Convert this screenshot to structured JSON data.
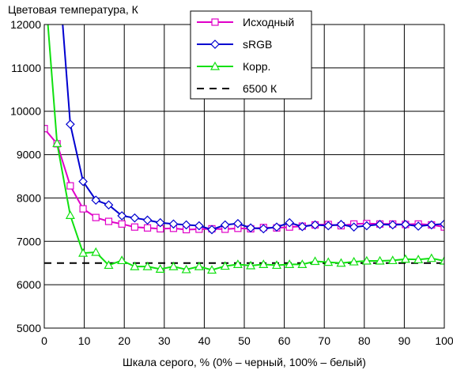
{
  "chart_data": {
    "type": "line",
    "ylabel": "Цветовая температура, К",
    "xlabel": "Шкала серого, % (0% – черный, 100% – белый)",
    "xlim": [
      0,
      100
    ],
    "ylim": [
      5000,
      12000
    ],
    "x_ticks": [
      "0",
      "10",
      "20",
      "30",
      "40",
      "50",
      "60",
      "70",
      "80",
      "90",
      "100"
    ],
    "y_ticks": [
      "5000",
      "6000",
      "7000",
      "8000",
      "9000",
      "10000",
      "11000",
      "12000"
    ],
    "grid": "horizontal and vertical",
    "legend_position": "top-center",
    "series": [
      {
        "name": "Исходный",
        "color": "#e000c8",
        "marker": "square",
        "points": [
          [
            0,
            9600
          ],
          [
            3.2,
            9250
          ],
          [
            6.5,
            8280
          ],
          [
            9.7,
            7750
          ],
          [
            12.9,
            7550
          ],
          [
            16.1,
            7460
          ],
          [
            19.4,
            7400
          ],
          [
            22.6,
            7330
          ],
          [
            25.8,
            7310
          ],
          [
            29,
            7290
          ],
          [
            32.3,
            7300
          ],
          [
            35.5,
            7270
          ],
          [
            38.7,
            7280
          ],
          [
            41.9,
            7290
          ],
          [
            45.2,
            7280
          ],
          [
            48.4,
            7300
          ],
          [
            51.6,
            7290
          ],
          [
            54.8,
            7320
          ],
          [
            58.1,
            7310
          ],
          [
            61.3,
            7330
          ],
          [
            64.5,
            7350
          ],
          [
            67.7,
            7380
          ],
          [
            71,
            7390
          ],
          [
            74.2,
            7360
          ],
          [
            77.4,
            7400
          ],
          [
            80.6,
            7410
          ],
          [
            83.9,
            7400
          ],
          [
            87.1,
            7400
          ],
          [
            90.3,
            7390
          ],
          [
            93.5,
            7400
          ],
          [
            96.8,
            7380
          ],
          [
            100,
            7330
          ]
        ]
      },
      {
        "name": "sRGB",
        "color": "#0000d0",
        "marker": "diamond",
        "points": [
          [
            6.5,
            9700
          ],
          [
            9.7,
            8380
          ],
          [
            12.9,
            7950
          ],
          [
            16.1,
            7840
          ],
          [
            19.4,
            7590
          ],
          [
            22.6,
            7540
          ],
          [
            25.8,
            7490
          ],
          [
            29,
            7430
          ],
          [
            32.3,
            7400
          ],
          [
            35.5,
            7380
          ],
          [
            38.7,
            7360
          ],
          [
            41.9,
            7270
          ],
          [
            45.2,
            7380
          ],
          [
            48.4,
            7410
          ],
          [
            51.6,
            7310
          ],
          [
            54.8,
            7290
          ],
          [
            58.1,
            7330
          ],
          [
            61.3,
            7430
          ],
          [
            64.5,
            7340
          ],
          [
            67.7,
            7380
          ],
          [
            71,
            7360
          ],
          [
            74.2,
            7390
          ],
          [
            77.4,
            7330
          ],
          [
            80.6,
            7360
          ],
          [
            83.9,
            7390
          ],
          [
            87.1,
            7380
          ],
          [
            90.3,
            7390
          ],
          [
            93.5,
            7350
          ],
          [
            96.8,
            7380
          ],
          [
            100,
            7400
          ]
        ],
        "line_from": [
          [
            4.6,
            12000
          ]
        ]
      },
      {
        "name": "Корр.",
        "color": "#10e010",
        "marker": "triangle",
        "points": [
          [
            3.2,
            9260
          ],
          [
            6.5,
            7600
          ],
          [
            9.7,
            6730
          ],
          [
            12.9,
            6750
          ],
          [
            16.1,
            6450
          ],
          [
            19.4,
            6560
          ],
          [
            22.6,
            6420
          ],
          [
            25.8,
            6420
          ],
          [
            29,
            6360
          ],
          [
            32.3,
            6420
          ],
          [
            35.5,
            6350
          ],
          [
            38.7,
            6420
          ],
          [
            41.9,
            6340
          ],
          [
            45.2,
            6430
          ],
          [
            48.4,
            6470
          ],
          [
            51.6,
            6440
          ],
          [
            54.8,
            6470
          ],
          [
            58.1,
            6450
          ],
          [
            61.3,
            6470
          ],
          [
            64.5,
            6470
          ],
          [
            67.7,
            6540
          ],
          [
            71,
            6520
          ],
          [
            74.2,
            6500
          ],
          [
            77.4,
            6530
          ],
          [
            80.6,
            6550
          ],
          [
            83.9,
            6550
          ],
          [
            87.1,
            6560
          ],
          [
            90.3,
            6590
          ],
          [
            93.5,
            6580
          ],
          [
            96.8,
            6610
          ],
          [
            100,
            6550
          ]
        ],
        "line_from": [
          [
            0.9,
            12000
          ]
        ]
      },
      {
        "name": "6500 К",
        "color": "#000000",
        "marker": "none",
        "dashed": true,
        "points": [
          [
            0,
            6500
          ],
          [
            100,
            6500
          ]
        ]
      }
    ]
  }
}
